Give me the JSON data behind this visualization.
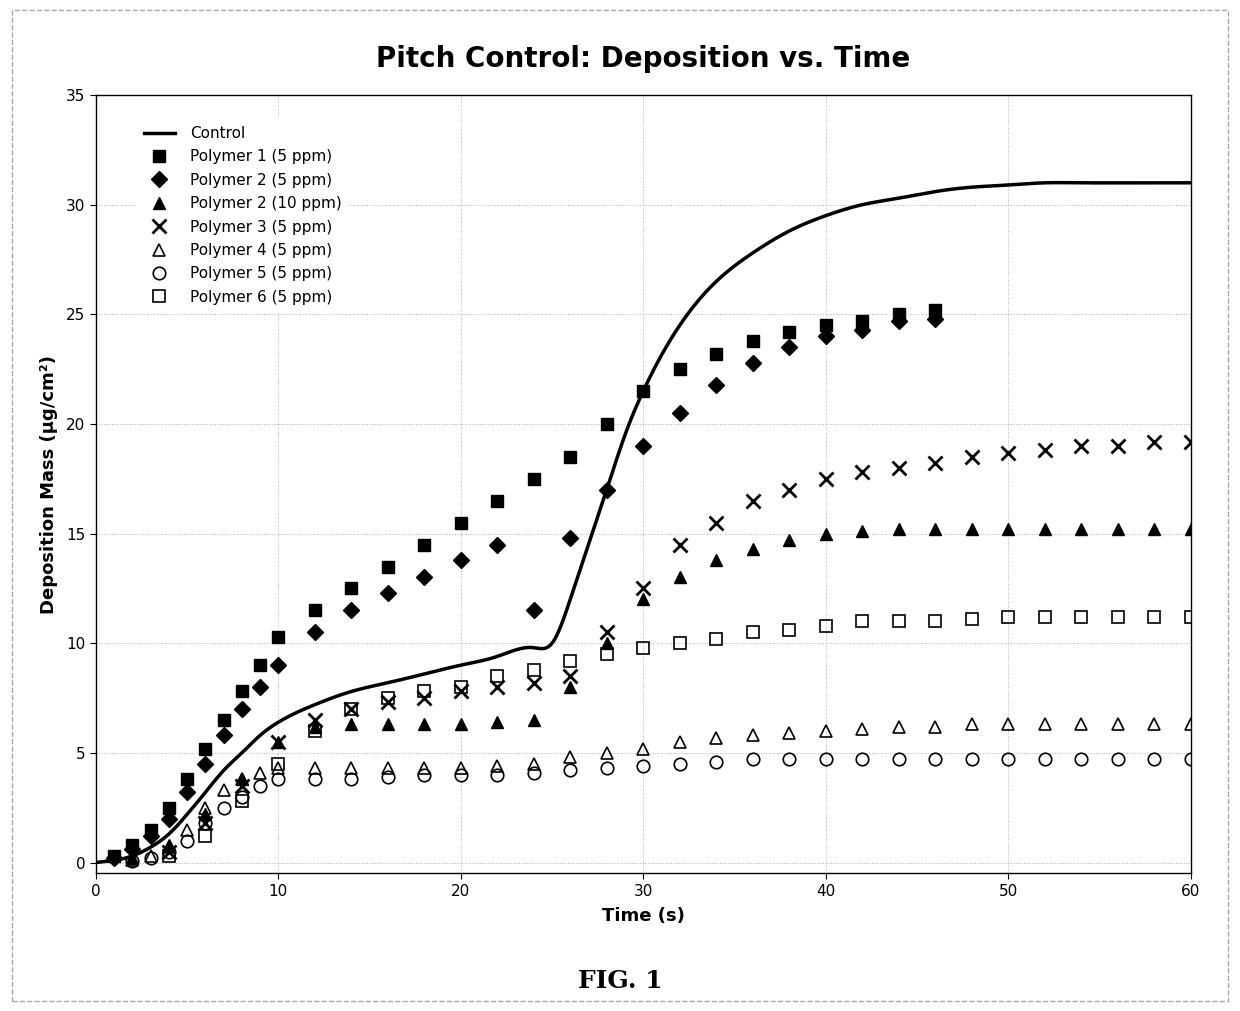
{
  "title": "Pitch Control: Deposition vs. Time",
  "xlabel": "Time (s)",
  "ylabel": "Deposition Mass (μg/cm²)",
  "xlim": [
    0,
    60
  ],
  "ylim": [
    -0.5,
    35
  ],
  "xticks": [
    0,
    10,
    20,
    30,
    40,
    50,
    60
  ],
  "yticks": [
    0,
    5,
    10,
    15,
    20,
    25,
    30,
    35
  ],
  "fig_caption": "FIG. 1",
  "control_x": [
    0,
    1,
    2,
    3,
    4,
    5,
    6,
    7,
    8,
    9,
    10,
    12,
    14,
    16,
    18,
    20,
    22,
    24,
    25,
    26,
    27,
    28,
    29,
    30,
    32,
    34,
    36,
    38,
    40,
    42,
    44,
    46,
    48,
    50,
    52,
    54,
    56,
    58,
    60
  ],
  "control_y": [
    0.0,
    0.1,
    0.3,
    0.7,
    1.3,
    2.2,
    3.2,
    4.2,
    5.0,
    5.8,
    6.4,
    7.2,
    7.8,
    8.2,
    8.6,
    9.0,
    9.4,
    9.8,
    10.0,
    12.0,
    14.5,
    17.0,
    19.5,
    21.5,
    24.5,
    26.5,
    27.8,
    28.8,
    29.5,
    30.0,
    30.3,
    30.6,
    30.8,
    30.9,
    31.0,
    31.0,
    31.0,
    31.0,
    31.0
  ],
  "series": [
    {
      "label": "Polymer 1 (5 ppm)",
      "marker": "s",
      "fillstyle": "full",
      "markersize": 8,
      "markeredgewidth": 1.0,
      "x": [
        1,
        2,
        3,
        4,
        5,
        6,
        7,
        8,
        9,
        10,
        12,
        14,
        16,
        18,
        20,
        22,
        24,
        26,
        28,
        30,
        32,
        34,
        36,
        38,
        40,
        42,
        44,
        46
      ],
      "y": [
        0.3,
        0.8,
        1.5,
        2.5,
        3.8,
        5.2,
        6.5,
        7.8,
        9.0,
        10.3,
        11.5,
        12.5,
        13.5,
        14.5,
        15.5,
        16.5,
        17.5,
        18.5,
        20.0,
        21.5,
        22.5,
        23.2,
        23.8,
        24.2,
        24.5,
        24.7,
        25.0,
        25.2
      ]
    },
    {
      "label": "Polymer 2 (5 ppm)",
      "marker": "D",
      "fillstyle": "full",
      "markersize": 8,
      "markeredgewidth": 1.0,
      "x": [
        1,
        2,
        3,
        4,
        5,
        6,
        7,
        8,
        9,
        10,
        12,
        14,
        16,
        18,
        20,
        22,
        24,
        26,
        28,
        30,
        32,
        34,
        36,
        38,
        40,
        42,
        44,
        46
      ],
      "y": [
        0.2,
        0.6,
        1.2,
        2.0,
        3.2,
        4.5,
        5.8,
        7.0,
        8.0,
        9.0,
        10.5,
        11.5,
        12.3,
        13.0,
        13.8,
        14.5,
        11.5,
        14.8,
        17.0,
        19.0,
        20.5,
        21.8,
        22.8,
        23.5,
        24.0,
        24.3,
        24.7,
        24.8
      ]
    },
    {
      "label": "Polymer 2 (10 ppm)",
      "marker": "^",
      "fillstyle": "full",
      "markersize": 8,
      "markeredgewidth": 1.0,
      "x": [
        2,
        4,
        6,
        8,
        10,
        12,
        14,
        16,
        18,
        20,
        22,
        24,
        26,
        28,
        30,
        32,
        34,
        36,
        38,
        40,
        42,
        44,
        46,
        48,
        50,
        52,
        54,
        56,
        58,
        60
      ],
      "y": [
        0.2,
        0.8,
        2.2,
        3.8,
        5.5,
        6.2,
        6.3,
        6.3,
        6.3,
        6.3,
        6.4,
        6.5,
        8.0,
        10.0,
        12.0,
        13.0,
        13.8,
        14.3,
        14.7,
        15.0,
        15.1,
        15.2,
        15.2,
        15.2,
        15.2,
        15.2,
        15.2,
        15.2,
        15.2,
        15.2
      ]
    },
    {
      "label": "Polymer 3 (5 ppm)",
      "marker": "x",
      "fillstyle": "full",
      "markersize": 10,
      "markeredgewidth": 2.0,
      "x": [
        4,
        6,
        8,
        10,
        12,
        14,
        16,
        18,
        20,
        22,
        24,
        26,
        28,
        30,
        32,
        34,
        36,
        38,
        40,
        42,
        44,
        46,
        48,
        50,
        52,
        54,
        56,
        58,
        60
      ],
      "y": [
        0.5,
        1.8,
        3.5,
        5.5,
        6.5,
        7.0,
        7.3,
        7.5,
        7.8,
        8.0,
        8.2,
        8.5,
        10.5,
        12.5,
        14.5,
        15.5,
        16.5,
        17.0,
        17.5,
        17.8,
        18.0,
        18.2,
        18.5,
        18.7,
        18.8,
        19.0,
        19.0,
        19.2,
        19.2
      ]
    },
    {
      "label": "Polymer 4 (5 ppm)",
      "marker": "^",
      "fillstyle": "none",
      "markersize": 9,
      "markeredgewidth": 1.2,
      "x": [
        2,
        3,
        4,
        5,
        6,
        7,
        8,
        9,
        10,
        12,
        14,
        16,
        18,
        20,
        22,
        24,
        26,
        28,
        30,
        32,
        34,
        36,
        38,
        40,
        42,
        44,
        46,
        48,
        50,
        52,
        54,
        56,
        58,
        60
      ],
      "y": [
        0.1,
        0.3,
        0.7,
        1.5,
        2.5,
        3.3,
        3.8,
        4.1,
        4.3,
        4.3,
        4.3,
        4.3,
        4.3,
        4.3,
        4.4,
        4.5,
        4.8,
        5.0,
        5.2,
        5.5,
        5.7,
        5.8,
        5.9,
        6.0,
        6.1,
        6.2,
        6.2,
        6.3,
        6.3,
        6.3,
        6.3,
        6.3,
        6.3,
        6.3
      ]
    },
    {
      "label": "Polymer 5 (5 ppm)",
      "marker": "o",
      "fillstyle": "none",
      "markersize": 9,
      "markeredgewidth": 1.2,
      "x": [
        2,
        3,
        4,
        5,
        6,
        7,
        8,
        9,
        10,
        12,
        14,
        16,
        18,
        20,
        22,
        24,
        26,
        28,
        30,
        32,
        34,
        36,
        38,
        40,
        42,
        44,
        46,
        48,
        50,
        52,
        54,
        56,
        58,
        60
      ],
      "y": [
        0.05,
        0.2,
        0.5,
        1.0,
        1.8,
        2.5,
        3.0,
        3.5,
        3.8,
        3.8,
        3.8,
        3.9,
        4.0,
        4.0,
        4.0,
        4.1,
        4.2,
        4.3,
        4.4,
        4.5,
        4.6,
        4.7,
        4.7,
        4.7,
        4.7,
        4.7,
        4.7,
        4.7,
        4.7,
        4.7,
        4.7,
        4.7,
        4.7,
        4.7
      ]
    },
    {
      "label": "Polymer 6 (5 ppm)",
      "marker": "s",
      "fillstyle": "none",
      "markersize": 9,
      "markeredgewidth": 1.2,
      "x": [
        4,
        6,
        8,
        10,
        12,
        14,
        16,
        18,
        20,
        22,
        24,
        26,
        28,
        30,
        32,
        34,
        36,
        38,
        40,
        42,
        44,
        46,
        48,
        50,
        52,
        54,
        56,
        58,
        60
      ],
      "y": [
        0.3,
        1.2,
        2.8,
        4.5,
        6.0,
        7.0,
        7.5,
        7.8,
        8.0,
        8.5,
        8.8,
        9.2,
        9.5,
        9.8,
        10.0,
        10.2,
        10.5,
        10.6,
        10.8,
        11.0,
        11.0,
        11.0,
        11.1,
        11.2,
        11.2,
        11.2,
        11.2,
        11.2,
        11.2
      ]
    }
  ]
}
